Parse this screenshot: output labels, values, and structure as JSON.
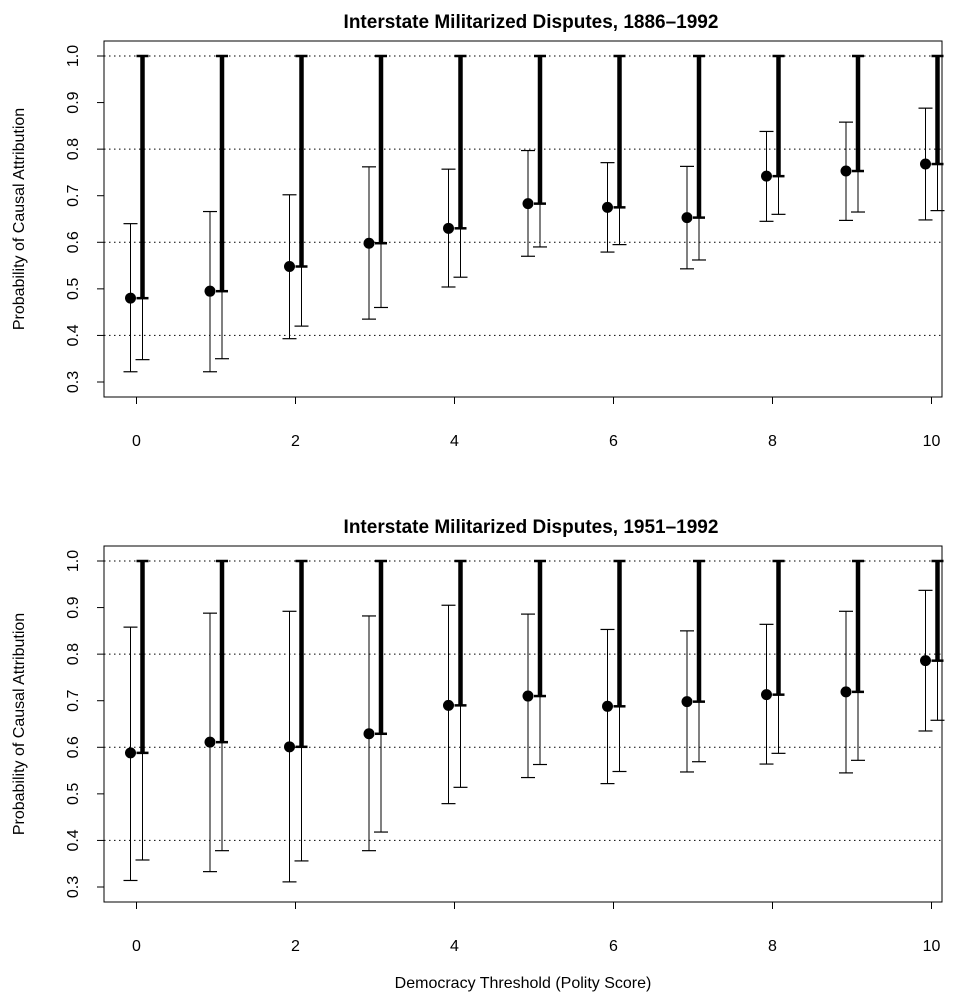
{
  "figure": {
    "xlabel": "Democracy Threshold (Polity Score)"
  },
  "chart_data": [
    {
      "type": "scatter",
      "title": "Interstate Militarized Disputes, 1886–1992",
      "xlabel": "",
      "ylabel": "Probability of Causal Attribution",
      "ylim": [
        0.3,
        1.0
      ],
      "xlim": [
        0,
        10
      ],
      "x_ticks": [
        "0",
        "2",
        "4",
        "6",
        "8",
        "10"
      ],
      "y_ticks": [
        "0.3",
        "0.4",
        "0.5",
        "0.6",
        "0.7",
        "0.8",
        "0.9",
        "1.0"
      ],
      "grid": "horizontal dotted",
      "x": [
        0,
        1,
        2,
        3,
        4,
        5,
        6,
        7,
        8,
        9,
        10
      ],
      "point_estimate": [
        0.48,
        0.495,
        0.548,
        0.598,
        0.63,
        0.683,
        0.675,
        0.653,
        0.742,
        0.753,
        0.768
      ],
      "interval": {
        "lower": [
          0.322,
          0.322,
          0.393,
          0.435,
          0.504,
          0.57,
          0.579,
          0.543,
          0.645,
          0.647,
          0.648
        ],
        "upper": [
          0.64,
          0.666,
          0.702,
          0.762,
          0.757,
          0.797,
          0.771,
          0.763,
          0.838,
          0.858,
          0.888
        ]
      },
      "bound": {
        "lower": [
          0.48,
          0.495,
          0.548,
          0.598,
          0.63,
          0.683,
          0.675,
          0.653,
          0.742,
          0.753,
          0.768
        ],
        "upper": [
          1.0,
          1.0,
          1.0,
          1.0,
          1.0,
          1.0,
          1.0,
          1.0,
          1.0,
          1.0,
          1.0
        ],
        "whisker_lower": [
          0.348,
          0.35,
          0.42,
          0.46,
          0.525,
          0.59,
          0.595,
          0.562,
          0.66,
          0.665,
          0.668
        ]
      }
    },
    {
      "type": "scatter",
      "title": "Interstate Militarized Disputes, 1951–1992",
      "xlabel": "",
      "ylabel": "Probability of Causal Attribution",
      "ylim": [
        0.3,
        1.0
      ],
      "xlim": [
        0,
        10
      ],
      "x_ticks": [
        "0",
        "2",
        "4",
        "6",
        "8",
        "10"
      ],
      "y_ticks": [
        "0.3",
        "0.4",
        "0.5",
        "0.6",
        "0.7",
        "0.8",
        "0.9",
        "1.0"
      ],
      "grid": "horizontal dotted",
      "x": [
        0,
        1,
        2,
        3,
        4,
        5,
        6,
        7,
        8,
        9,
        10
      ],
      "point_estimate": [
        0.588,
        0.611,
        0.601,
        0.629,
        0.69,
        0.71,
        0.688,
        0.698,
        0.713,
        0.719,
        0.786
      ],
      "interval": {
        "lower": [
          0.314,
          0.333,
          0.311,
          0.378,
          0.479,
          0.535,
          0.522,
          0.547,
          0.564,
          0.545,
          0.635
        ],
        "upper": [
          0.858,
          0.888,
          0.892,
          0.882,
          0.905,
          0.886,
          0.853,
          0.85,
          0.864,
          0.892,
          0.937
        ]
      },
      "bound": {
        "lower": [
          0.588,
          0.611,
          0.601,
          0.629,
          0.69,
          0.71,
          0.688,
          0.698,
          0.713,
          0.719,
          0.786
        ],
        "upper": [
          1.0,
          1.0,
          1.0,
          1.0,
          1.0,
          1.0,
          1.0,
          1.0,
          1.0,
          1.0,
          1.0
        ],
        "whisker_lower": [
          0.358,
          0.378,
          0.356,
          0.418,
          0.514,
          0.563,
          0.548,
          0.569,
          0.587,
          0.572,
          0.658
        ]
      }
    }
  ]
}
